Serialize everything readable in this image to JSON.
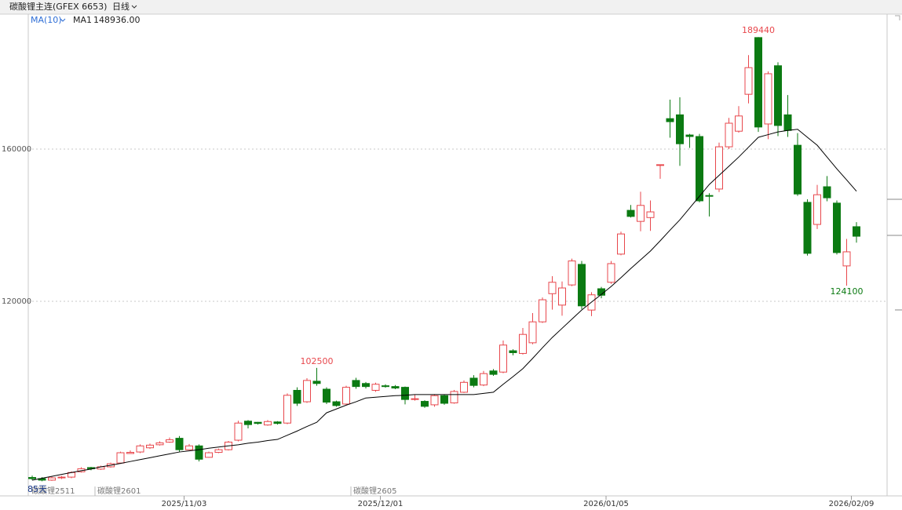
{
  "chart_data": {
    "type": "candlestick",
    "title": "碳酸锂主连(GFEX 6653)",
    "period": "日线",
    "indicator": "MA(10)",
    "ma": {
      "name": "MA1",
      "color": "#000000",
      "last_label": "148936.00",
      "values": [
        73000,
        73500,
        74000,
        74500,
        75000,
        75500,
        75900,
        76500,
        76900,
        77400,
        77900,
        78400,
        78900,
        79400,
        79900,
        80400,
        80700,
        81000,
        81400,
        81700,
        82000,
        82300,
        82700,
        83000,
        83400,
        83700,
        84800,
        85900,
        87100,
        88200,
        90700,
        91700,
        92700,
        93600,
        94600,
        94800,
        95000,
        95200,
        95300,
        95500,
        95500,
        95500,
        95500,
        95500,
        95500,
        95500,
        95800,
        96100,
        98200,
        100200,
        102300,
        105000,
        107800,
        110500,
        112900,
        115300,
        117700,
        119800,
        121800,
        123900,
        126200,
        128600,
        130900,
        133200,
        135900,
        138700,
        141400,
        144500,
        147600,
        150700,
        153100,
        155500,
        157900,
        160500,
        163100,
        163800,
        164500,
        164900,
        165200,
        163100,
        161000,
        157900,
        154800,
        151900,
        148936
      ]
    },
    "up_color": "#e8474c",
    "down_color": "#0b7a12",
    "categories": [
      null,
      null,
      null,
      null,
      null,
      null,
      null,
      null,
      null,
      null,
      null,
      null,
      null,
      null,
      null,
      "2025/11/03",
      null,
      null,
      null,
      null,
      null,
      null,
      null,
      null,
      null,
      null,
      null,
      null,
      null,
      null,
      null,
      null,
      null,
      null,
      null,
      "2025/12/01",
      null,
      null,
      null,
      null,
      null,
      null,
      null,
      null,
      null,
      null,
      null,
      null,
      null,
      null,
      null,
      null,
      null,
      null,
      null,
      null,
      null,
      null,
      "2026/01/05",
      null,
      null,
      null,
      null,
      null,
      null,
      null,
      null,
      null,
      null,
      null,
      null,
      null,
      null,
      null,
      null,
      null,
      null,
      null,
      null,
      null,
      null,
      null,
      null,
      "2026/02/09",
      null
    ],
    "open": [
      73700,
      73400,
      73000,
      73600,
      73800,
      75200,
      76300,
      75900,
      76500,
      77500,
      80000,
      80400,
      81500,
      82300,
      83000,
      84000,
      81000,
      82000,
      79000,
      80300,
      81000,
      83500,
      88500,
      88200,
      87500,
      88300,
      88000,
      96600,
      93600,
      99000,
      96900,
      93600,
      93000,
      99200,
      98400,
      96600,
      97800,
      97600,
      97400,
      94200,
      93700,
      92800,
      95200,
      93300,
      96100,
      99800,
      98000,
      101700,
      101400,
      107000,
      106300,
      109100,
      114600,
      122000,
      119000,
      124300,
      129700,
      117700,
      123300,
      125000,
      132400,
      143900,
      141000,
      142000,
      155900,
      168000,
      169000,
      163700,
      163300,
      147800,
      149500,
      160600,
      164700,
      174400,
      189300,
      166600,
      181900,
      169000,
      161000,
      146000,
      140200,
      150100,
      145800,
      129300,
      139600
    ],
    "high": [
      74200,
      73800,
      74000,
      74100,
      75300,
      76400,
      76500,
      76800,
      77600,
      80500,
      80800,
      82400,
      82600,
      83200,
      84200,
      84600,
      82500,
      82400,
      80500,
      81300,
      83300,
      88600,
      88800,
      88300,
      88800,
      88500,
      95800,
      97400,
      99800,
      102500,
      97400,
      93900,
      97800,
      99900,
      98800,
      98600,
      98200,
      98000,
      97600,
      95400,
      94000,
      95600,
      95500,
      96700,
      99200,
      100600,
      101700,
      102200,
      109700,
      107400,
      113000,
      116900,
      121000,
      126600,
      125200,
      131200,
      130600,
      122400,
      123800,
      130600,
      138300,
      145300,
      148800,
      146500,
      155900,
      173000,
      173600,
      164000,
      164000,
      148400,
      161700,
      168200,
      171300,
      184700,
      189440,
      180400,
      182800,
      174200,
      164200,
      146800,
      150600,
      152900,
      146500,
      136400,
      140800
    ],
    "low": [
      73000,
      72700,
      72800,
      73300,
      73500,
      75000,
      75600,
      75700,
      76300,
      77300,
      80000,
      80100,
      81200,
      82100,
      82800,
      80500,
      81000,
      77900,
      78900,
      80100,
      80800,
      83200,
      86600,
      87600,
      87300,
      87600,
      87700,
      92500,
      93300,
      97800,
      93000,
      92300,
      92800,
      97000,
      97100,
      96200,
      97300,
      96900,
      92900,
      93900,
      92000,
      92300,
      92800,
      93100,
      95900,
      97400,
      97700,
      100400,
      101100,
      105800,
      106000,
      108700,
      114300,
      117800,
      116200,
      124000,
      117900,
      116100,
      120800,
      124600,
      132100,
      142000,
      138400,
      138500,
      152200,
      163000,
      155600,
      160300,
      146000,
      142300,
      148700,
      160000,
      164300,
      172000,
      164500,
      162600,
      163400,
      163200,
      147700,
      132000,
      139000,
      146300,
      132300,
      124100,
      135400
    ],
    "close": [
      73400,
      73000,
      73600,
      73800,
      75000,
      76000,
      76000,
      76500,
      77300,
      80200,
      80300,
      82000,
      82200,
      82800,
      83600,
      81000,
      82000,
      78500,
      80200,
      81000,
      83000,
      88000,
      87600,
      87900,
      88400,
      87900,
      95300,
      93200,
      99200,
      98400,
      93500,
      92600,
      97400,
      97600,
      97600,
      98200,
      97600,
      97200,
      94200,
      94400,
      92400,
      95200,
      93200,
      96300,
      98700,
      97900,
      101000,
      100800,
      108500,
      106500,
      111300,
      114600,
      120400,
      125000,
      123500,
      130600,
      118800,
      121700,
      121600,
      129900,
      137700,
      142300,
      145200,
      143500,
      155900,
      167200,
      161400,
      163300,
      146400,
      147600,
      160600,
      166800,
      168700,
      181400,
      165800,
      179800,
      166200,
      164900,
      148200,
      132600,
      148000,
      147200,
      132800,
      133000,
      137100
    ],
    "ylim": [
      68866,
      195464
    ],
    "yticks": [
      120000,
      160000
    ],
    "grid": true,
    "contracts": [
      "碳酸锂2511",
      "碳酸锂2601",
      "碳酸锂2605"
    ],
    "days_label": "85天"
  }
}
